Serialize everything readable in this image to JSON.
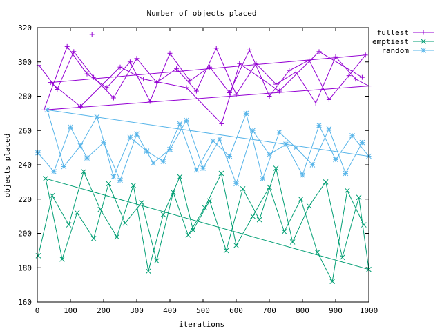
{
  "chart_data": {
    "type": "line",
    "title": "Number of objects placed",
    "xlabel": "iterations",
    "ylabel": "objects placed",
    "xlim": [
      0,
      1000
    ],
    "ylim": [
      160,
      320
    ],
    "xticks": [
      0,
      100,
      200,
      300,
      400,
      500,
      600,
      700,
      800,
      900,
      1000
    ],
    "yticks": [
      160,
      180,
      200,
      220,
      240,
      260,
      280,
      300,
      320
    ],
    "grid": false,
    "legend_position": "top-right",
    "series": [
      {
        "name": "fullest",
        "color": "#9400d3",
        "marker": "plus",
        "x": [
          5,
          60,
          110,
          170,
          230,
          300,
          360,
          420,
          480,
          540,
          600,
          660,
          720,
          780,
          840,
          900,
          960,
          1000,
          20,
          90,
          150,
          210,
          280,
          340,
          400,
          460,
          520,
          580,
          640,
          700,
          760,
          820,
          880,
          940,
          990,
          40,
          130,
          250,
          320,
          450,
          556,
          610,
          730,
          850,
          980
        ],
        "y": [
          298,
          284,
          306,
          291,
          279,
          302,
          288,
          296,
          283,
          308,
          281,
          299,
          287,
          294,
          276,
          303,
          290,
          286,
          272,
          309,
          293,
          285,
          300,
          277,
          305,
          289,
          297,
          282,
          307,
          280,
          295,
          301,
          278,
          292,
          304,
          288,
          274,
          297,
          290,
          285,
          264,
          299,
          283,
          306,
          291
        ],
        "extra_points": [
          {
            "x": 165,
            "y": 316
          },
          {
            "x": 556,
            "y": 264
          }
        ]
      },
      {
        "name": "emptiest",
        "color": "#009e73",
        "marker": "cross",
        "x": [
          3,
          45,
          95,
          140,
          190,
          240,
          290,
          335,
          380,
          430,
          470,
          520,
          570,
          620,
          670,
          720,
          770,
          820,
          870,
          920,
          970,
          1000,
          25,
          75,
          120,
          170,
          215,
          265,
          315,
          360,
          410,
          455,
          505,
          555,
          600,
          650,
          700,
          745,
          795,
          845,
          890,
          935,
          985
        ],
        "y": [
          187,
          222,
          205,
          236,
          214,
          198,
          228,
          178,
          211,
          233,
          202,
          219,
          190,
          226,
          208,
          238,
          195,
          216,
          230,
          186,
          221,
          179,
          232,
          185,
          212,
          197,
          229,
          206,
          218,
          184,
          224,
          199,
          215,
          235,
          193,
          210,
          227,
          201,
          220,
          189,
          172,
          225,
          205
        ]
      },
      {
        "name": "random",
        "color": "#56b4e9",
        "marker": "star",
        "x": [
          2,
          50,
          100,
          150,
          200,
          250,
          300,
          350,
          400,
          450,
          500,
          550,
          600,
          650,
          700,
          750,
          800,
          850,
          900,
          950,
          1000,
          30,
          80,
          130,
          180,
          230,
          280,
          330,
          380,
          430,
          480,
          530,
          580,
          630,
          680,
          730,
          780,
          830,
          880,
          930,
          980
        ],
        "y": [
          247,
          236,
          262,
          244,
          253,
          231,
          258,
          241,
          249,
          266,
          238,
          255,
          229,
          260,
          246,
          252,
          234,
          263,
          243,
          257,
          245,
          272,
          239,
          251,
          268,
          233,
          256,
          248,
          242,
          264,
          237,
          254,
          245,
          270,
          232,
          259,
          250,
          240,
          261,
          235,
          253
        ]
      }
    ]
  }
}
